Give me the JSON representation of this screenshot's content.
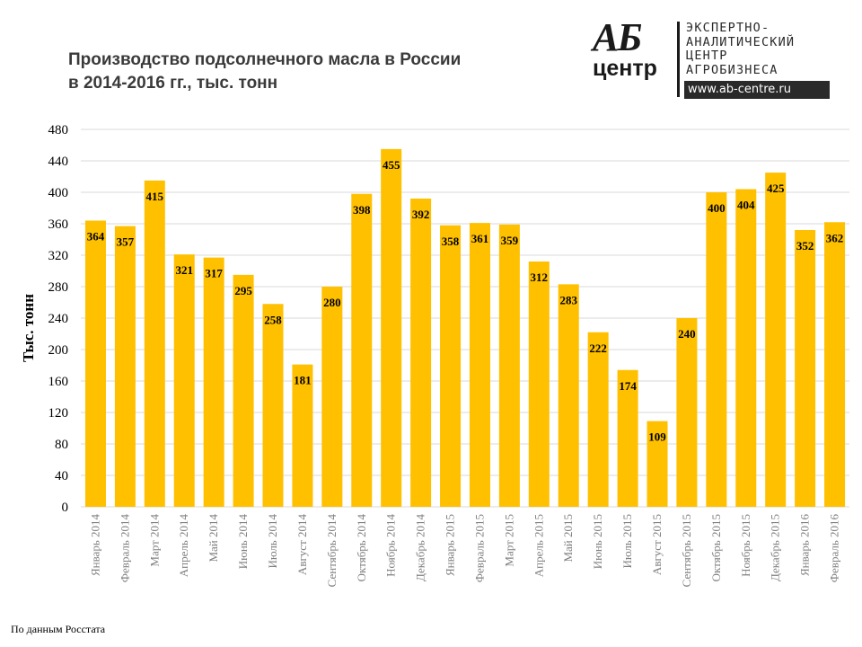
{
  "title_line1": "Производство подсолнечного масла в России",
  "title_line2": "в 2014-2016 гг., тыс. тонн",
  "logo": {
    "mark_top": "АБ",
    "mark_bottom": "центр",
    "line1": "ЭКСПЕРТНО-",
    "line2": "АНАЛИТИЧЕСКИЙ",
    "line3": "ЦЕНТР",
    "line4": "АГРОБИЗНЕСА",
    "url": "www.ab-centre.ru"
  },
  "source": "По данным Росстата",
  "colors": {
    "bar": "#FFC000",
    "grid": "#D9D9D9",
    "label": "#000000"
  },
  "chart_data": {
    "type": "bar",
    "title": "Производство подсолнечного масла в России в 2014-2016 гг., тыс. тонн",
    "ylabel": "Тыс. тонн",
    "xlabel": "",
    "ylim": [
      0,
      480
    ],
    "yticks": [
      0,
      40,
      80,
      120,
      160,
      200,
      240,
      280,
      320,
      360,
      400,
      440,
      480
    ],
    "grid": true,
    "categories": [
      "Январь 2014",
      "Февраль 2014",
      "Март 2014",
      "Апрель 2014",
      "Май 2014",
      "Июнь 2014",
      "Июль 2014",
      "Август 2014",
      "Сентябрь 2014",
      "Октябрь 2014",
      "Ноябрь 2014",
      "Декабрь 2014",
      "Январь 2015",
      "Февраль 2015",
      "Март 2015",
      "Апрель 2015",
      "Май 2015",
      "Июнь 2015",
      "Июль 2015",
      "Август 2015",
      "Сентябрь 2015",
      "Октябрь 2015",
      "Ноябрь 2015",
      "Декабрь 2015",
      "Январь 2016",
      "Февраль 2016"
    ],
    "values": [
      364,
      357,
      415,
      321,
      317,
      295,
      258,
      181,
      280,
      398,
      455,
      392,
      358,
      361,
      359,
      312,
      283,
      222,
      174,
      109,
      240,
      400,
      404,
      425,
      352,
      362
    ]
  }
}
